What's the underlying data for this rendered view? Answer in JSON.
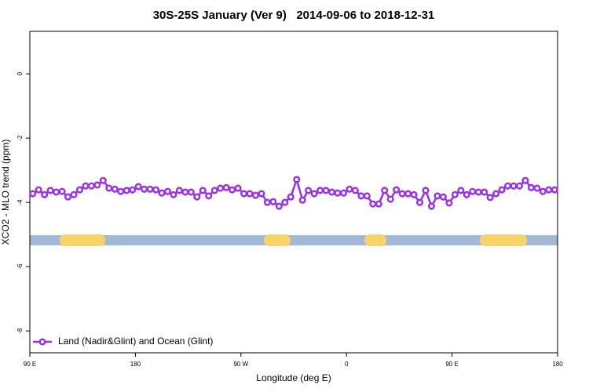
{
  "chart_data": {
    "type": "line",
    "title": "30S-25S January (Ver 9)   2014-09-06 to 2018-12-31",
    "x_label": "Longitude (deg E)",
    "y_label": "XCO2 - MLO trend (ppm)",
    "x": [
      92.5,
      97.5,
      102.5,
      107.5,
      112.5,
      117.5,
      122.5,
      127.5,
      132.5,
      137.5,
      142.5,
      147.5,
      152.5,
      157.5,
      162.5,
      167.5,
      172.5,
      177.5,
      182.5,
      187.5,
      192.5,
      197.5,
      202.5,
      207.5,
      212.5,
      217.5,
      222.5,
      227.5,
      232.5,
      237.5,
      242.5,
      247.5,
      252.5,
      257.5,
      262.5,
      267.5,
      272.5,
      277.5,
      282.5,
      287.5,
      292.5,
      297.5,
      302.5,
      307.5,
      312.5,
      317.5,
      322.5,
      327.5,
      332.5,
      337.5,
      342.5,
      347.5,
      352.5,
      357.5,
      362.5,
      367.5,
      372.5,
      377.5,
      382.5,
      387.5,
      392.5,
      397.5,
      402.5,
      407.5,
      412.5,
      417.5,
      422.5,
      427.5,
      432.5,
      437.5,
      442.5,
      447.5,
      452.5,
      457.5,
      462.5,
      467.5,
      472.5,
      477.5,
      482.5,
      487.5,
      492.5,
      497.5,
      502.5,
      507.5,
      512.5,
      517.5,
      522.5,
      527.5,
      532.5,
      537.5
    ],
    "series": [
      {
        "name": "Land (Nadir&Glint) and Ocean (Glint)",
        "color": "#9b30e6",
        "values": [
          -3.73,
          -3.61,
          -3.76,
          -3.63,
          -3.68,
          -3.66,
          -3.83,
          -3.76,
          -3.61,
          -3.49,
          -3.49,
          -3.46,
          -3.32,
          -3.56,
          -3.59,
          -3.66,
          -3.63,
          -3.61,
          -3.51,
          -3.59,
          -3.59,
          -3.61,
          -3.71,
          -3.66,
          -3.76,
          -3.63,
          -3.68,
          -3.68,
          -3.83,
          -3.63,
          -3.8,
          -3.63,
          -3.56,
          -3.54,
          -3.61,
          -3.56,
          -3.73,
          -3.73,
          -3.78,
          -3.73,
          -4.0,
          -3.98,
          -4.12,
          -4.0,
          -3.83,
          -3.29,
          -3.93,
          -3.63,
          -3.73,
          -3.63,
          -3.63,
          -3.68,
          -3.71,
          -3.71,
          -3.59,
          -3.63,
          -3.8,
          -3.8,
          -4.05,
          -4.05,
          -3.63,
          -3.9,
          -3.61,
          -3.73,
          -3.73,
          -3.76,
          -4.0,
          -3.63,
          -4.12,
          -3.8,
          -3.83,
          -4.02,
          -3.76,
          -3.63,
          -3.76,
          -3.66,
          -3.68,
          -3.68,
          -3.85,
          -3.73,
          -3.61,
          -3.49,
          -3.49,
          -3.49,
          -3.32,
          -3.54,
          -3.56,
          -3.66,
          -3.61,
          -3.61
        ]
      }
    ],
    "xlim": [
      90,
      540
    ],
    "xticks": [
      {
        "value": 90,
        "label": "90 E"
      },
      {
        "value": 180,
        "label": "180"
      },
      {
        "value": 270,
        "label": "90 W"
      },
      {
        "value": 360,
        "label": "0"
      },
      {
        "value": 450,
        "label": "90 E"
      },
      {
        "value": 540,
        "label": "180"
      }
    ],
    "ylim": [
      -8.68,
      1.32
    ],
    "yticks": [
      0,
      -2,
      -4,
      -6,
      -8
    ],
    "grid": false,
    "legend": "bottomleft"
  }
}
